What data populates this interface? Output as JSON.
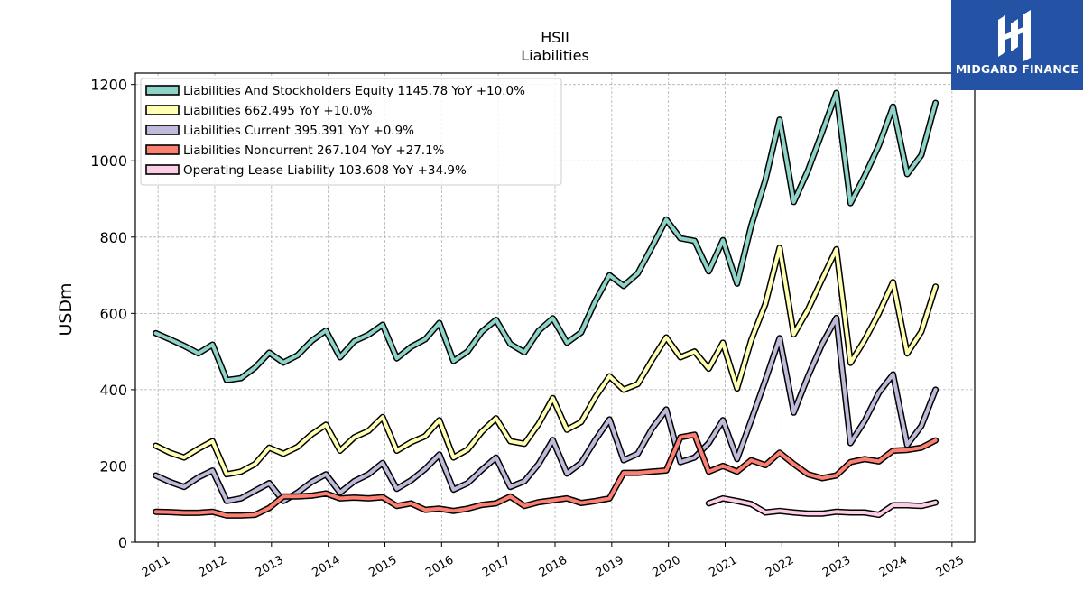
{
  "chart_data": {
    "type": "line",
    "ticker": "HSII",
    "title": "Liabilities",
    "ylabel": "USDm",
    "ylim": [
      0,
      1230
    ],
    "xlim": [
      2010.6,
      2025.4
    ],
    "yticks": [
      0,
      200,
      400,
      600,
      800,
      1000,
      1200
    ],
    "xticks": [
      2011,
      2012,
      2013,
      2014,
      2015,
      2016,
      2017,
      2018,
      2019,
      2020,
      2021,
      2022,
      2023,
      2024,
      2025
    ],
    "grid": true,
    "legend_position": "top-left",
    "series": [
      {
        "name": "Liabilities And Stockholders Equity",
        "legend": "Liabilities And Stockholders Equity  1145.78 YoY +10.0%",
        "color": "#8dd3c7",
        "x": [
          2010.96,
          2011.21,
          2011.46,
          2011.71,
          2011.96,
          2012.21,
          2012.46,
          2012.71,
          2012.96,
          2013.21,
          2013.46,
          2013.71,
          2013.96,
          2014.21,
          2014.46,
          2014.71,
          2014.96,
          2015.21,
          2015.46,
          2015.71,
          2015.96,
          2016.21,
          2016.46,
          2016.71,
          2016.96,
          2017.21,
          2017.46,
          2017.71,
          2017.96,
          2018.21,
          2018.46,
          2018.71,
          2018.96,
          2019.21,
          2019.46,
          2019.71,
          2019.96,
          2020.21,
          2020.46,
          2020.71,
          2020.96,
          2021.21,
          2021.46,
          2021.71,
          2021.96,
          2022.21,
          2022.46,
          2022.71,
          2022.96,
          2023.21,
          2023.46,
          2023.71,
          2023.96,
          2024.21,
          2024.46,
          2024.71
        ],
        "y": [
          548,
          532,
          515,
          495,
          518,
          425,
          430,
          458,
          497,
          471,
          490,
          528,
          555,
          485,
          527,
          544,
          570,
          482,
          512,
          532,
          575,
          475,
          500,
          552,
          583,
          520,
          498,
          554,
          587,
          523,
          550,
          632,
          700,
          672,
          705,
          775,
          846,
          797,
          790,
          710,
          792,
          678,
          830,
          950,
          1108,
          892,
          975,
          1075,
          1178,
          889,
          960,
          1040,
          1142,
          965,
          1015,
          1152
        ]
      },
      {
        "name": "Liabilities",
        "legend": "Liabilities  662.495 YoY +10.0%",
        "color": "#ffffb3",
        "x": [
          2010.96,
          2011.21,
          2011.46,
          2011.71,
          2011.96,
          2012.21,
          2012.46,
          2012.71,
          2012.96,
          2013.21,
          2013.46,
          2013.71,
          2013.96,
          2014.21,
          2014.46,
          2014.71,
          2014.96,
          2015.21,
          2015.46,
          2015.71,
          2015.96,
          2016.21,
          2016.46,
          2016.71,
          2016.96,
          2017.21,
          2017.46,
          2017.71,
          2017.96,
          2018.21,
          2018.46,
          2018.71,
          2018.96,
          2019.21,
          2019.46,
          2019.71,
          2019.96,
          2020.21,
          2020.46,
          2020.71,
          2020.96,
          2021.21,
          2021.46,
          2021.71,
          2021.96,
          2022.21,
          2022.46,
          2022.71,
          2022.96,
          2023.21,
          2023.46,
          2023.71,
          2023.96,
          2024.21,
          2024.46,
          2024.71
        ],
        "y": [
          253,
          235,
          222,
          245,
          265,
          178,
          185,
          205,
          248,
          232,
          250,
          283,
          308,
          240,
          275,
          292,
          328,
          240,
          262,
          278,
          320,
          222,
          243,
          290,
          325,
          265,
          258,
          310,
          378,
          295,
          315,
          380,
          435,
          400,
          415,
          478,
          537,
          485,
          500,
          455,
          523,
          403,
          530,
          625,
          772,
          545,
          610,
          690,
          768,
          470,
          530,
          600,
          682,
          495,
          552,
          670
        ]
      },
      {
        "name": "Liabilities Current",
        "legend": "Liabilities Current  395.391 YoY +0.9%",
        "color": "#bebada",
        "x": [
          2010.96,
          2011.21,
          2011.46,
          2011.71,
          2011.96,
          2012.21,
          2012.46,
          2012.71,
          2012.96,
          2013.21,
          2013.46,
          2013.71,
          2013.96,
          2014.21,
          2014.46,
          2014.71,
          2014.96,
          2015.21,
          2015.46,
          2015.71,
          2015.96,
          2016.21,
          2016.46,
          2016.71,
          2016.96,
          2017.21,
          2017.46,
          2017.71,
          2017.96,
          2018.21,
          2018.46,
          2018.71,
          2018.96,
          2019.21,
          2019.46,
          2019.71,
          2019.96,
          2020.21,
          2020.46,
          2020.71,
          2020.96,
          2021.21,
          2021.46,
          2021.71,
          2021.96,
          2022.21,
          2022.46,
          2022.71,
          2022.96,
          2023.21,
          2023.46,
          2023.71,
          2023.96,
          2024.21,
          2024.46,
          2024.71
        ],
        "y": [
          175,
          158,
          145,
          170,
          188,
          108,
          115,
          135,
          155,
          108,
          130,
          158,
          178,
          130,
          160,
          178,
          208,
          140,
          162,
          192,
          230,
          138,
          155,
          190,
          222,
          145,
          160,
          205,
          268,
          180,
          208,
          268,
          322,
          215,
          232,
          298,
          348,
          210,
          222,
          260,
          320,
          218,
          320,
          425,
          535,
          340,
          435,
          520,
          588,
          260,
          318,
          392,
          440,
          255,
          305,
          400
        ]
      },
      {
        "name": "Liabilities Noncurrent",
        "legend": "Liabilities Noncurrent  267.104 YoY +27.1%",
        "color": "#fb8072",
        "x": [
          2010.96,
          2011.21,
          2011.46,
          2011.71,
          2011.96,
          2012.21,
          2012.46,
          2012.71,
          2012.96,
          2013.21,
          2013.46,
          2013.71,
          2013.96,
          2014.21,
          2014.46,
          2014.71,
          2014.96,
          2015.21,
          2015.46,
          2015.71,
          2015.96,
          2016.21,
          2016.46,
          2016.71,
          2016.96,
          2017.21,
          2017.46,
          2017.71,
          2017.96,
          2018.21,
          2018.46,
          2018.71,
          2018.96,
          2019.21,
          2019.46,
          2019.71,
          2019.96,
          2020.21,
          2020.46,
          2020.71,
          2020.96,
          2021.21,
          2021.46,
          2021.71,
          2021.96,
          2022.21,
          2022.46,
          2022.71,
          2022.96,
          2023.21,
          2023.46,
          2023.71,
          2023.96,
          2024.21,
          2024.46,
          2024.71
        ],
        "y": [
          80,
          79,
          77,
          77,
          80,
          70,
          70,
          72,
          90,
          120,
          120,
          122,
          128,
          115,
          117,
          115,
          118,
          95,
          102,
          85,
          88,
          82,
          88,
          98,
          102,
          120,
          95,
          105,
          110,
          115,
          103,
          108,
          115,
          182,
          182,
          185,
          188,
          275,
          282,
          185,
          200,
          185,
          215,
          202,
          235,
          205,
          178,
          168,
          175,
          210,
          218,
          212,
          240,
          242,
          248,
          267
        ]
      },
      {
        "name": "Operating Lease Liability",
        "legend": "Operating Lease Liability  103.608 YoY +34.9%",
        "color": "#fccde5",
        "x": [
          2020.71,
          2020.96,
          2021.21,
          2021.46,
          2021.71,
          2021.96,
          2022.21,
          2022.46,
          2022.71,
          2022.96,
          2023.21,
          2023.46,
          2023.71,
          2023.96,
          2024.21,
          2024.46,
          2024.71
        ],
        "y": [
          102,
          115,
          108,
          100,
          78,
          82,
          78,
          75,
          75,
          80,
          78,
          78,
          72,
          97,
          97,
          95,
          104
        ]
      }
    ]
  },
  "logo": {
    "text": "MIDGARD FINANCE",
    "background": "#2453a6"
  }
}
